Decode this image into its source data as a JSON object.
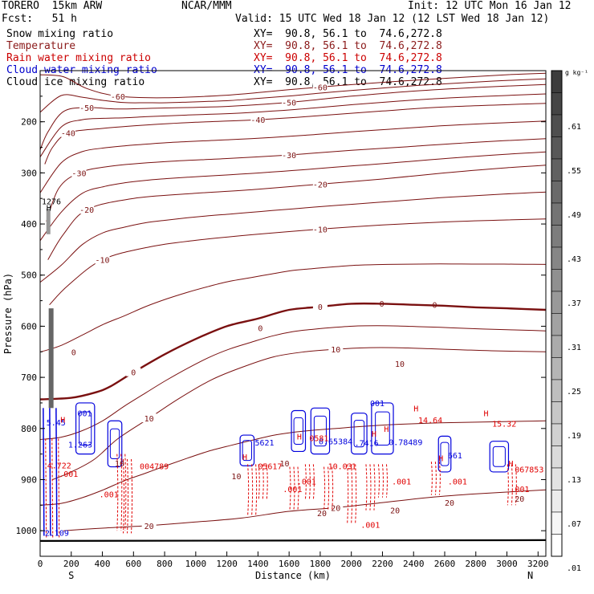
{
  "header": {
    "model": "TORERO  15km ARW",
    "center": "NCAR/MMM",
    "init": "Init: 12 UTC Mon 16 Jan 12",
    "fcst": "Fcst:   51 h",
    "valid": "Valid: 15 UTC Wed 18 Jan 12 (12 LST Wed 18 Jan 12)"
  },
  "fields": [
    {
      "name": "Snow mixing ratio",
      "xy": "XY=  90.8, 56.1 to  74.6,272.8",
      "color": "#000000"
    },
    {
      "name": "Temperature",
      "xy": "XY=  90.8, 56.1 to  74.6,272.8",
      "color": "#8b1a1a"
    },
    {
      "name": "Rain water mixing ratio",
      "xy": "XY=  90.8, 56.1 to  74.6,272.8",
      "color": "#cc0000"
    },
    {
      "name": "Cloud water mixing ratio",
      "xy": "XY=  90.8, 56.1 to  74.6,272.8",
      "color": "#0000cc"
    },
    {
      "name": "Cloud ice mixing ratio",
      "xy": "XY=  90.8, 56.1 to  74.6,272.8",
      "color": "#000000"
    }
  ],
  "colors": {
    "temperature": "#7a1010",
    "rain": "#e00000",
    "cloud_water": "#0000dd",
    "ice": "#000000"
  },
  "chart_data": {
    "type": "line",
    "xlabel": "Distance (km)",
    "ylabel": "Pressure (hPa)",
    "xlim": [
      0,
      3250
    ],
    "ylim": [
      1050,
      100
    ],
    "x_ticks": [
      0,
      200,
      400,
      600,
      800,
      1000,
      1200,
      1400,
      1600,
      1800,
      2000,
      2200,
      2400,
      2600,
      2800,
      3000,
      3200
    ],
    "y_ticks": [
      200,
      300,
      400,
      500,
      600,
      700,
      800,
      900,
      1000
    ],
    "start_label": "S",
    "end_label": "N",
    "temperature_contours": [
      {
        "value": -60,
        "label": "-60",
        "points": [
          [
            0,
            108
          ],
          [
            150,
            112
          ],
          [
            300,
            135
          ],
          [
            500,
            150
          ],
          [
            800,
            153
          ],
          [
            1200,
            148
          ],
          [
            1500,
            140
          ],
          [
            1800,
            132
          ],
          [
            2200,
            123
          ],
          [
            2600,
            115
          ],
          [
            3000,
            108
          ],
          [
            3250,
            105
          ]
        ]
      },
      {
        "value": -50,
        "label": "-50",
        "points": [
          [
            0,
            255
          ],
          [
            50,
            220
          ],
          [
            150,
            180
          ],
          [
            300,
            172
          ],
          [
            500,
            175
          ],
          [
            800,
            173
          ],
          [
            1200,
            170
          ],
          [
            1600,
            162
          ],
          [
            2000,
            150
          ],
          [
            2400,
            140
          ],
          [
            2800,
            133
          ],
          [
            3250,
            127
          ]
        ]
      },
      {
        "value": -40,
        "label": "-40",
        "points": [
          [
            30,
            283
          ],
          [
            80,
            250
          ],
          [
            180,
            222
          ],
          [
            400,
            213
          ],
          [
            700,
            206
          ],
          [
            1000,
            201
          ],
          [
            1400,
            196
          ],
          [
            1800,
            188
          ],
          [
            2200,
            179
          ],
          [
            2600,
            171
          ],
          [
            3250,
            164
          ]
        ]
      },
      {
        "value": -30,
        "label": "-30",
        "points": [
          [
            40,
            395
          ],
          [
            120,
            330
          ],
          [
            250,
            300
          ],
          [
            450,
            287
          ],
          [
            800,
            278
          ],
          [
            1200,
            272
          ],
          [
            1600,
            265
          ],
          [
            2000,
            256
          ],
          [
            2400,
            248
          ],
          [
            2800,
            240
          ],
          [
            3250,
            233
          ]
        ]
      },
      {
        "value": -20,
        "label": "-20",
        "points": [
          [
            50,
            470
          ],
          [
            150,
            420
          ],
          [
            300,
            372
          ],
          [
            600,
            350
          ],
          [
            1000,
            340
          ],
          [
            1400,
            332
          ],
          [
            1800,
            322
          ],
          [
            2200,
            312
          ],
          [
            2600,
            300
          ],
          [
            3000,
            290
          ],
          [
            3250,
            285
          ]
        ]
      },
      {
        "value": -10,
        "label": "-10",
        "points": [
          [
            60,
            558
          ],
          [
            180,
            520
          ],
          [
            400,
            470
          ],
          [
            700,
            445
          ],
          [
            1000,
            432
          ],
          [
            1400,
            420
          ],
          [
            1800,
            410
          ],
          [
            2200,
            402
          ],
          [
            2600,
            396
          ],
          [
            3000,
            392
          ],
          [
            3250,
            390
          ]
        ]
      },
      {
        "value": 0,
        "label": "0",
        "points": [
          [
            0,
            743
          ],
          [
            200,
            740
          ],
          [
            350,
            730
          ],
          [
            450,
            718
          ],
          [
            600,
            690
          ],
          [
            800,
            655
          ],
          [
            1000,
            625
          ],
          [
            1200,
            600
          ],
          [
            1400,
            585
          ],
          [
            1600,
            568
          ],
          [
            1800,
            562
          ],
          [
            2000,
            556
          ],
          [
            2200,
            556
          ],
          [
            2400,
            558
          ],
          [
            2600,
            560
          ],
          [
            2800,
            563
          ],
          [
            3000,
            565
          ],
          [
            3250,
            568
          ]
        ]
      },
      {
        "value": 10,
        "label": "10",
        "points": [
          [
            80,
            900
          ],
          [
            200,
            885
          ],
          [
            350,
            860
          ],
          [
            500,
            820
          ],
          [
            700,
            780
          ],
          [
            900,
            740
          ],
          [
            1100,
            705
          ],
          [
            1300,
            680
          ],
          [
            1500,
            660
          ],
          [
            1700,
            650
          ],
          [
            1900,
            645
          ],
          [
            2100,
            642
          ],
          [
            2300,
            642
          ],
          [
            2500,
            644
          ],
          [
            2700,
            646
          ],
          [
            2900,
            648
          ],
          [
            3250,
            650
          ]
        ]
      },
      {
        "value": 20,
        "label": "20",
        "points": [
          [
            150,
            1000
          ],
          [
            400,
            995
          ],
          [
            700,
            990
          ],
          [
            1000,
            983
          ],
          [
            1300,
            975
          ],
          [
            1600,
            962
          ],
          [
            1900,
            955
          ],
          [
            2200,
            945
          ],
          [
            2500,
            935
          ],
          [
            2800,
            928
          ],
          [
            3250,
            920
          ]
        ]
      }
    ],
    "zero_contour_value": 0,
    "ground_pressure": 1020,
    "rain_max_labels": [
      {
        "x": 130,
        "p": 782,
        "value": "H"
      },
      {
        "x": 45,
        "p": 872,
        "value": "4.722"
      },
      {
        "x": 640,
        "p": 873,
        "value": "004789"
      },
      {
        "x": 1400,
        "p": 873,
        "value": "05617"
      },
      {
        "x": 1650,
        "p": 815,
        "value": "H"
      },
      {
        "x": 1730,
        "p": 818,
        "value": "0581"
      },
      {
        "x": 1850,
        "p": 873,
        "value": "10.03"
      },
      {
        "x": 1970,
        "p": 873,
        "value": ".1"
      },
      {
        "x": 2130,
        "p": 810,
        "value": "H"
      },
      {
        "x": 2210,
        "p": 800,
        "value": "H"
      },
      {
        "x": 2400,
        "p": 760,
        "value": "H"
      },
      {
        "x": 2430,
        "p": 783,
        "value": "14.64"
      },
      {
        "x": 2850,
        "p": 770,
        "value": "H"
      },
      {
        "x": 2905,
        "p": 790,
        "value": "15.32"
      },
      {
        "x": 3010,
        "p": 868,
        "value": "H"
      },
      {
        "x": 3050,
        "p": 880,
        "value": "067853"
      },
      {
        "x": 1300,
        "p": 855,
        "value": "H"
      },
      {
        "x": 2560,
        "p": 858,
        "value": "H"
      }
    ],
    "small_labels": [
      {
        "x": 480,
        "p": 868,
        "value": "10",
        "color": "temperature"
      },
      {
        "x": 1230,
        "p": 893,
        "value": "10",
        "color": "temperature"
      },
      {
        "x": 1540,
        "p": 868,
        "value": "10",
        "color": "temperature"
      },
      {
        "x": 2280,
        "p": 673,
        "value": "10",
        "color": "temperature"
      },
      {
        "x": 1780,
        "p": 965,
        "value": "20",
        "color": "temperature"
      },
      {
        "x": 2250,
        "p": 960,
        "value": "20",
        "color": "temperature"
      },
      {
        "x": 2600,
        "p": 945,
        "value": "20",
        "color": "temperature"
      },
      {
        "x": 3050,
        "p": 937,
        "value": "20",
        "color": "temperature"
      },
      {
        "x": 200,
        "p": 650,
        "value": "0",
        "color": "temperature"
      },
      {
        "x": 1400,
        "p": 603,
        "value": "0",
        "color": "temperature"
      },
      {
        "x": 2180,
        "p": 555,
        "value": "0",
        "color": "temperature"
      },
      {
        "x": 2520,
        "p": 558,
        "value": "0",
        "color": "temperature"
      },
      {
        "x": 240,
        "p": 770,
        "value": "001",
        "color": "cloud_water"
      },
      {
        "x": 2120,
        "p": 750,
        "value": "001",
        "color": "cloud_water"
      },
      {
        "x": 40,
        "p": 788,
        "value": "5.45",
        "color": "cloud_water"
      },
      {
        "x": 180,
        "p": 831,
        "value": "1.263",
        "color": "cloud_water"
      },
      {
        "x": 1380,
        "p": 827,
        "value": "5621",
        "color": "cloud_water"
      },
      {
        "x": 1790,
        "p": 825,
        "value": "0.65384",
        "color": "cloud_water"
      },
      {
        "x": 2020,
        "p": 828,
        "value": ".7416",
        "color": "cloud_water"
      },
      {
        "x": 2240,
        "p": 826,
        "value": "0.78489",
        "color": "cloud_water"
      },
      {
        "x": 2620,
        "p": 852,
        "value": "661",
        "color": "cloud_water"
      },
      {
        "x": 30,
        "p": 1004,
        "value": "2.109",
        "color": "cloud_water"
      },
      {
        "x": 120,
        "p": 888,
        "value": ".001",
        "color": "rain"
      },
      {
        "x": 380,
        "p": 928,
        "value": ".001",
        "color": "rain"
      },
      {
        "x": 1560,
        "p": 918,
        "value": ".001",
        "color": "rain"
      },
      {
        "x": 2260,
        "p": 903,
        "value": ".001",
        "color": "rain"
      },
      {
        "x": 2060,
        "p": 988,
        "value": ".001",
        "color": "rain"
      },
      {
        "x": 2620,
        "p": 903,
        "value": ".001",
        "color": "rain"
      },
      {
        "x": 3020,
        "p": 918,
        "value": ".001",
        "color": "rain"
      },
      {
        "x": 1650,
        "p": 903,
        "value": ".001",
        "color": "rain"
      },
      {
        "x": 10,
        "p": 355,
        "value": "1276",
        "color": "ice"
      },
      {
        "x": 40,
        "p": 368,
        "value": "H",
        "color": "ice"
      }
    ],
    "colorbar": {
      "unit": "g kg⁻¹",
      "labels": [
        ".61",
        ".55",
        ".49",
        ".43",
        ".37",
        ".31",
        ".25",
        ".19",
        ".13",
        ".07",
        ".01"
      ],
      "levels": 22
    },
    "cloud_water_blobs": [
      {
        "cx": 290,
        "cp": 800,
        "rx": 60,
        "rp": 50
      },
      {
        "cx": 480,
        "cp": 830,
        "rx": 45,
        "rp": 45
      },
      {
        "cx": 1330,
        "cp": 843,
        "rx": 45,
        "rp": 30
      },
      {
        "cx": 1660,
        "cp": 805,
        "rx": 45,
        "rp": 40
      },
      {
        "cx": 1800,
        "cp": 805,
        "rx": 60,
        "rp": 45
      },
      {
        "cx": 2050,
        "cp": 810,
        "rx": 50,
        "rp": 40
      },
      {
        "cx": 2200,
        "cp": 800,
        "rx": 70,
        "rp": 50
      },
      {
        "cx": 2600,
        "cp": 850,
        "rx": 40,
        "rp": 35
      },
      {
        "cx": 2950,
        "cp": 855,
        "rx": 60,
        "rp": 30
      }
    ],
    "rain_columns": [
      {
        "x": 520,
        "top": 850,
        "bottom": 1000
      },
      {
        "x": 560,
        "top": 860,
        "bottom": 1005
      },
      {
        "x": 1360,
        "top": 870,
        "bottom": 970
      },
      {
        "x": 1430,
        "top": 870,
        "bottom": 940
      },
      {
        "x": 1630,
        "top": 875,
        "bottom": 960
      },
      {
        "x": 1730,
        "top": 870,
        "bottom": 940
      },
      {
        "x": 1850,
        "top": 875,
        "bottom": 960
      },
      {
        "x": 2000,
        "top": 870,
        "bottom": 985
      },
      {
        "x": 2120,
        "top": 870,
        "bottom": 960
      },
      {
        "x": 2200,
        "top": 870,
        "bottom": 935
      },
      {
        "x": 2540,
        "top": 865,
        "bottom": 930
      },
      {
        "x": 3030,
        "top": 870,
        "bottom": 950
      }
    ]
  }
}
